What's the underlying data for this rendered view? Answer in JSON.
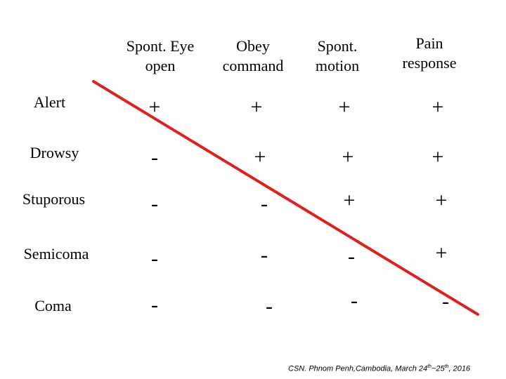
{
  "columns": [
    {
      "line1": "Spont. Eye",
      "line2": "open"
    },
    {
      "line1": "Obey",
      "line2": "command"
    },
    {
      "line1": "Spont.",
      "line2": "motion"
    },
    {
      "line1": "Pain",
      "line2": "response"
    }
  ],
  "rows": [
    {
      "label": "Alert",
      "cells": [
        "+",
        "+",
        "+",
        "+"
      ]
    },
    {
      "label": "Drowsy",
      "cells": [
        "-",
        "+",
        "+",
        "+"
      ]
    },
    {
      "label": "Stuporous",
      "cells": [
        "-",
        "-",
        "+",
        "+"
      ]
    },
    {
      "label": "Semicoma",
      "cells": [
        "-",
        "-",
        "-",
        "+"
      ]
    },
    {
      "label": "Coma",
      "cells": [
        "-",
        "-",
        "-",
        "-"
      ]
    }
  ],
  "footer": {
    "prefix": "CSN. Phnom Penh,Cambodia, March 24",
    "sup1": "th",
    "mid": "~25",
    "sup2": "th",
    "suffix": ", 2016"
  },
  "colors": {
    "diagonal_line": "#e0201c"
  }
}
